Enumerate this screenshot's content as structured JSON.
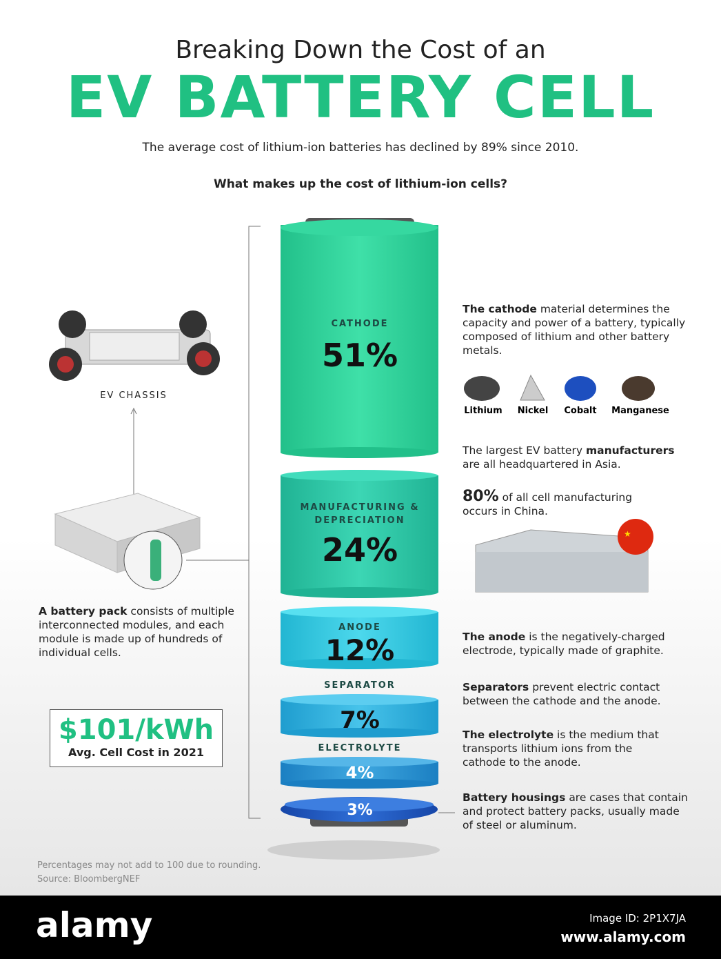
{
  "header": {
    "title_line1": "Breaking Down the Cost of an",
    "title_line2": "EV BATTERY CELL",
    "subtitle": "The average cost of lithium-ion batteries has declined by 89% since 2010.",
    "question": "What makes up the cost of lithium-ion cells?"
  },
  "segments": [
    {
      "label": "CATHODE",
      "value": "51%"
    },
    {
      "label": "MANUFACTURING & DEPRECIATION",
      "value": "24%"
    },
    {
      "label": "ANODE",
      "value": "12%"
    },
    {
      "label": "SEPARATOR",
      "value": "7%"
    },
    {
      "label": "ELECTROLYTE",
      "value": "4%"
    },
    {
      "label": "",
      "value": "3%"
    }
  ],
  "left": {
    "chassis_label": "EV CHASSIS",
    "pack_bold": "A battery pack",
    "pack_text": "consists of multiple interconnected modules, and each module is made up of hundreds of individual cells.",
    "cost_value": "$101/kWh",
    "cost_label": "Avg. Cell Cost in 2021"
  },
  "right": {
    "cathode": {
      "bold": "The cathode",
      "text": "material determines the capacity and power of a battery, typically composed of lithium and other battery metals."
    },
    "minerals": [
      "Lithium",
      "Nickel",
      "Cobalt",
      "Manganese"
    ],
    "manufacturers": {
      "text1": "The largest EV battery",
      "bold": "manufacturers",
      "text2": "are all headquartered in Asia."
    },
    "china": {
      "bold": "80%",
      "text": "of all cell manufacturing occurs in China."
    },
    "anode": {
      "bold": "The anode",
      "text": "is the negatively-charged electrode, typically made of graphite."
    },
    "separators": {
      "bold": "Separators",
      "text": "prevent electric contact between the cathode and the anode."
    },
    "electrolyte": {
      "bold": "The electrolyte",
      "text": "is the medium that transports lithium ions from the cathode to the anode."
    },
    "housings": {
      "bold": "Battery housings",
      "text": "are cases that contain and protect battery packs, usually made of steel or aluminum."
    }
  },
  "footer": {
    "note": "Percentages may not add to 100 due to rounding.",
    "source": "Source: BloombergNEF"
  },
  "watermark": {
    "brand": "alamy",
    "image_id": "Image ID: 2P1X7JA",
    "url": "www.alamy.com"
  }
}
